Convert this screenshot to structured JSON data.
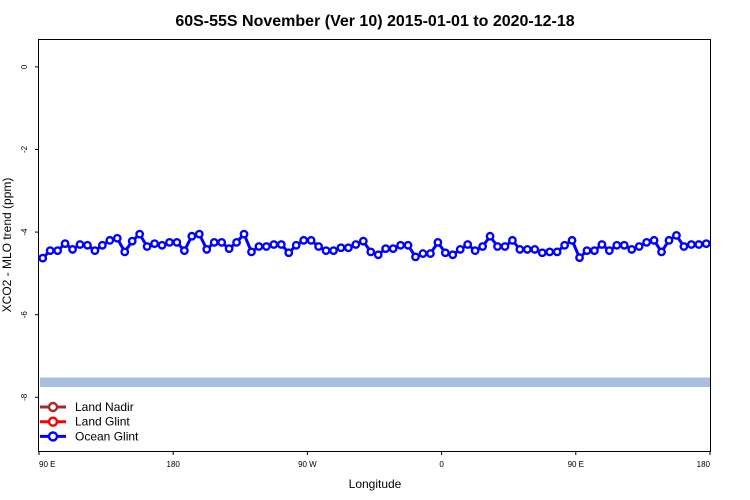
{
  "chart_data": {
    "type": "line",
    "title": "60S-55S November (Ver 10)   2015-01-01 to 2020-12-18",
    "xlabel": "Longitude",
    "ylabel": "XCO2 - MLO trend (ppm)",
    "xlim": [
      90,
      540
    ],
    "ylim": [
      -9.3,
      0.65
    ],
    "x_ticks": [
      {
        "value": 90,
        "label": "90 E"
      },
      {
        "value": 180,
        "label": "180"
      },
      {
        "value": 270,
        "label": "90 W"
      },
      {
        "value": 360,
        "label": "0"
      },
      {
        "value": 450,
        "label": "90 E"
      },
      {
        "value": 540,
        "label": "180"
      }
    ],
    "y_ticks": [
      {
        "value": 0,
        "label": "0"
      },
      {
        "value": -2,
        "label": "-2"
      },
      {
        "value": -4,
        "label": "-4"
      },
      {
        "value": -6,
        "label": "-6"
      },
      {
        "value": -8,
        "label": "-8"
      }
    ],
    "band": {
      "y_from": -7.52,
      "y_to": -7.75,
      "color": "#a8bfe0"
    },
    "legend": {
      "position": "bottom-left",
      "entries": [
        {
          "label": "Land Nadir",
          "color": "#a52a2a"
        },
        {
          "label": "Land Glint",
          "color": "#ff0000"
        },
        {
          "label": "Ocean Glint",
          "color": "#0000ff"
        }
      ]
    },
    "series": [
      {
        "name": "Ocean Glint",
        "color": "#0000ff",
        "x": [
          92.5,
          97.5,
          102.5,
          107.5,
          112.5,
          117.5,
          122.5,
          127.5,
          132.5,
          137.5,
          142.5,
          147.5,
          152.5,
          157.5,
          162.5,
          167.5,
          172.5,
          177.5,
          182.5,
          187.5,
          192.5,
          197.5,
          202.5,
          207.5,
          212.5,
          217.5,
          222.5,
          227.5,
          232.5,
          237.5,
          242.5,
          247.5,
          252.5,
          257.5,
          262.5,
          267.5,
          272.5,
          277.5,
          282.5,
          287.5,
          292.5,
          297.5,
          302.5,
          307.5,
          312.5,
          317.5,
          322.5,
          327.5,
          332.5,
          337.5,
          342.5,
          347.5,
          352.5,
          357.5,
          362.5,
          367.5,
          372.5,
          377.5,
          382.5,
          387.5,
          392.5,
          397.5,
          402.5,
          407.5,
          412.5,
          417.5,
          422.5,
          427.5,
          432.5,
          437.5,
          442.5,
          447.5,
          452.5,
          457.5,
          462.5,
          467.5,
          472.5,
          477.5,
          482.5,
          487.5,
          492.5,
          497.5,
          502.5,
          507.5,
          512.5,
          517.5,
          522.5,
          527.5,
          532.5,
          537.5
        ],
        "y": [
          -4.63,
          -4.45,
          -4.45,
          -4.28,
          -4.42,
          -4.3,
          -4.32,
          -4.45,
          -4.32,
          -4.2,
          -4.15,
          -4.48,
          -4.22,
          -4.05,
          -4.35,
          -4.28,
          -4.32,
          -4.25,
          -4.25,
          -4.45,
          -4.1,
          -4.05,
          -4.42,
          -4.25,
          -4.25,
          -4.4,
          -4.25,
          -4.05,
          -4.48,
          -4.35,
          -4.35,
          -4.3,
          -4.3,
          -4.5,
          -4.32,
          -4.2,
          -4.2,
          -4.35,
          -4.45,
          -4.45,
          -4.38,
          -4.38,
          -4.3,
          -4.22,
          -4.48,
          -4.55,
          -4.4,
          -4.4,
          -4.32,
          -4.32,
          -4.6,
          -4.52,
          -4.52,
          -4.25,
          -4.5,
          -4.55,
          -4.42,
          -4.3,
          -4.45,
          -4.35,
          -4.1,
          -4.35,
          -4.35,
          -4.2,
          -4.42,
          -4.42,
          -4.42,
          -4.5,
          -4.48,
          -4.48,
          -4.32,
          -4.2,
          -4.62,
          -4.45,
          -4.45,
          -4.3,
          -4.45,
          -4.32,
          -4.32,
          -4.42,
          -4.35,
          -4.25,
          -4.2,
          -4.48,
          -4.2,
          -4.08,
          -4.35,
          -4.3,
          -4.3,
          -4.28
        ]
      }
    ]
  }
}
